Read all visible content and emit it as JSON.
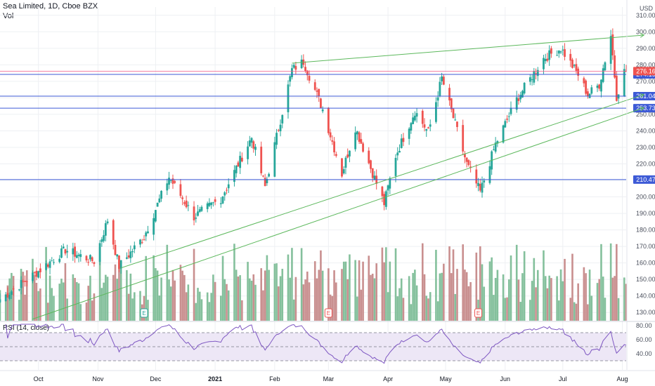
{
  "header": {
    "symbol_line": "Sea Limited, 1D, Cboe BZX",
    "volume_label": "Vol"
  },
  "rsi": {
    "label": "RSI (14, close)",
    "ticks": [
      80.0,
      60.0,
      40.0
    ],
    "upper_band": 70,
    "lower_band": 30,
    "band_fill": "#ede7f6",
    "line_color": "#7e57c2"
  },
  "chart_data": {
    "type": "candlestick",
    "title": "Sea Limited, 1D, Cboe BZX",
    "currency": "USD",
    "ylim": [
      125,
      315
    ],
    "y_ticks": [
      130,
      140,
      150,
      160,
      170,
      180,
      190,
      200,
      210,
      220,
      230,
      240,
      250,
      260,
      270,
      280,
      290,
      300,
      310
    ],
    "x_tick_labels": [
      "Oct",
      "Nov",
      "Dec",
      "2021",
      "Feb",
      "Mar",
      "Apr",
      "May",
      "Jun",
      "Jul",
      "Aug"
    ],
    "x_range": [
      "2020-09-11",
      "2021-08-03"
    ],
    "last_price": 276.16,
    "horizontal_levels": [
      274.19,
      261.04,
      253.73,
      210.47
    ],
    "trendlines": [
      {
        "from": [
          "2021-02-10",
          281
        ],
        "to": [
          "2021-08-02",
          298
        ]
      },
      {
        "from": [
          "2020-11-13",
          157
        ],
        "to": [
          "2021-08-02",
          262
        ]
      },
      {
        "from": [
          "2020-09-28",
          126
        ],
        "to": [
          "2021-08-02",
          254
        ]
      }
    ],
    "closes": [
      {
        "date": "2020-09-11",
        "close": 138
      },
      {
        "date": "2020-10-01",
        "close": 155
      },
      {
        "date": "2020-10-15",
        "close": 168
      },
      {
        "date": "2020-10-30",
        "close": 161
      },
      {
        "date": "2020-11-06",
        "close": 186
      },
      {
        "date": "2020-11-12",
        "close": 158
      },
      {
        "date": "2020-11-25",
        "close": 176
      },
      {
        "date": "2020-12-08",
        "close": 212
      },
      {
        "date": "2020-12-21",
        "close": 188
      },
      {
        "date": "2021-01-04",
        "close": 199
      },
      {
        "date": "2021-01-20",
        "close": 236
      },
      {
        "date": "2021-01-27",
        "close": 206
      },
      {
        "date": "2021-02-10",
        "close": 277
      },
      {
        "date": "2021-02-16",
        "close": 282
      },
      {
        "date": "2021-02-26",
        "close": 253
      },
      {
        "date": "2021-03-08",
        "close": 214
      },
      {
        "date": "2021-03-15",
        "close": 242
      },
      {
        "date": "2021-03-30",
        "close": 196
      },
      {
        "date": "2021-04-05",
        "close": 225
      },
      {
        "date": "2021-04-15",
        "close": 252
      },
      {
        "date": "2021-04-22",
        "close": 239
      },
      {
        "date": "2021-04-29",
        "close": 272
      },
      {
        "date": "2021-05-12",
        "close": 220
      },
      {
        "date": "2021-05-19",
        "close": 203
      },
      {
        "date": "2021-05-27",
        "close": 232
      },
      {
        "date": "2021-06-07",
        "close": 259
      },
      {
        "date": "2021-06-21",
        "close": 284
      },
      {
        "date": "2021-06-30",
        "close": 290
      },
      {
        "date": "2021-07-09",
        "close": 274
      },
      {
        "date": "2021-07-14",
        "close": 262
      },
      {
        "date": "2021-07-20",
        "close": 268
      },
      {
        "date": "2021-07-26",
        "close": 298
      },
      {
        "date": "2021-07-29",
        "close": 261
      },
      {
        "date": "2021-08-02",
        "close": 276
      }
    ],
    "volume_markers": [
      {
        "date": "2020-11-25",
        "label": "E",
        "color": "#26a69a"
      },
      {
        "date": "2021-03-01",
        "label": "E",
        "color": "#ef5350"
      },
      {
        "date": "2021-05-18",
        "label": "E",
        "color": "#ef5350"
      }
    ]
  },
  "colors": {
    "up": "#26a69a",
    "down": "#ef5350",
    "volume_up": "#84c09c",
    "volume_down": "#c98f8f",
    "level_line": "#3d5ad6",
    "trendline": "#5cb85c",
    "last_price_line": "#f05a8a",
    "grid": "#eef0f3",
    "axis_text": "#4a4f5c"
  }
}
